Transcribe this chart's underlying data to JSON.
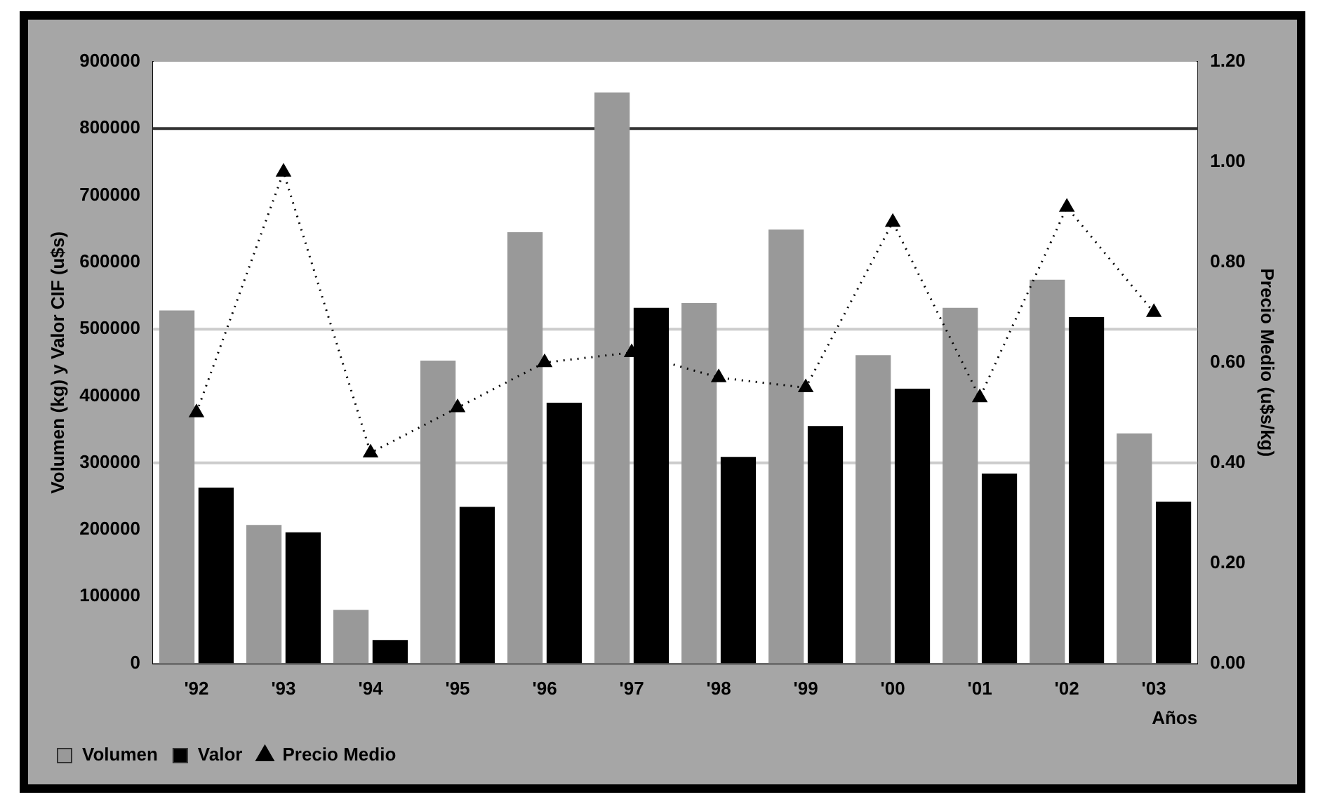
{
  "chart_data": {
    "type": "bar",
    "xlabel": "Años",
    "ylabel": "Volumen (kg) y Valor CIF (u$s)",
    "y2label": "Precio Medio (u$s/kg)",
    "categories": [
      "'92",
      "'93",
      "'94",
      "'95",
      "'96",
      "'97",
      "'98",
      "'99",
      "'00",
      "'01",
      "'02",
      "'03"
    ],
    "series": [
      {
        "name": "Volumen",
        "color": "#999999",
        "values": [
          528000,
          207000,
          80000,
          453000,
          645000,
          854000,
          539000,
          649000,
          461000,
          532000,
          574000,
          344000
        ]
      },
      {
        "name": "Valor",
        "color": "#000000",
        "values": [
          263000,
          196000,
          35000,
          234000,
          390000,
          532000,
          309000,
          355000,
          411000,
          284000,
          518000,
          242000
        ]
      },
      {
        "name": "Precio Medio",
        "type": "line",
        "axis": "y2",
        "color": "#000000",
        "marker": "triangle",
        "line_style": "dotted",
        "values": [
          0.5,
          0.98,
          0.42,
          0.51,
          0.6,
          0.62,
          0.57,
          0.55,
          0.88,
          0.53,
          0.91,
          0.7
        ]
      }
    ],
    "ylim": [
      0,
      900000
    ],
    "yticks": [
      0,
      100000,
      200000,
      300000,
      400000,
      500000,
      600000,
      700000,
      800000,
      900000
    ],
    "y2lim": [
      0,
      1.2
    ],
    "y2ticks": [
      {
        "value": 0,
        "label": "0.00"
      },
      {
        "value": 0.2,
        "label": "0.20"
      },
      {
        "value": 0.4,
        "label": "0.40"
      },
      {
        "value": 0.6,
        "label": "0.60"
      },
      {
        "value": 0.8,
        "label": "0.80"
      },
      {
        "value": 1.0,
        "label": "1.00"
      },
      {
        "value": 1.2,
        "label": "1.20"
      }
    ],
    "ref_lines": [
      {
        "axis": "y",
        "value": 800000,
        "color": "#333333"
      },
      {
        "axis": "y",
        "value": 500000,
        "color": "#cccccc"
      },
      {
        "axis": "y",
        "value": 300000,
        "color": "#cccccc"
      }
    ],
    "grid": false,
    "legend": "bottom left"
  }
}
